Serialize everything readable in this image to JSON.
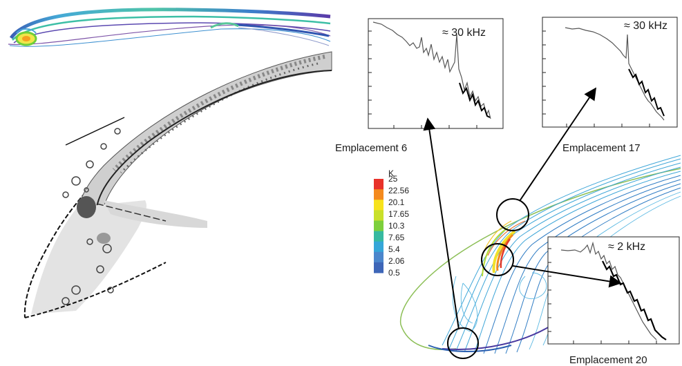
{
  "spectra": [
    {
      "id": "e6",
      "annotation": "≈ 30 kHz",
      "caption": "Emplacement 6"
    },
    {
      "id": "e17",
      "annotation": "≈ 30 kHz",
      "caption": "Emplacement 17"
    },
    {
      "id": "e20",
      "annotation": "≈ 2 kHz",
      "caption": "Emplacement 20"
    }
  ],
  "colorbar": {
    "unit": "K",
    "ticks": [
      "25",
      "22.56",
      "20.1",
      "17.65",
      "10.3",
      "7.65",
      "5.4",
      "2.06",
      "0.5"
    ],
    "colors": [
      "#e8322a",
      "#f48a1e",
      "#f7e21c",
      "#c9e02a",
      "#7dcf3c",
      "#36b9a0",
      "#35a6d8",
      "#4b86cc",
      "#3e66b8"
    ]
  }
}
